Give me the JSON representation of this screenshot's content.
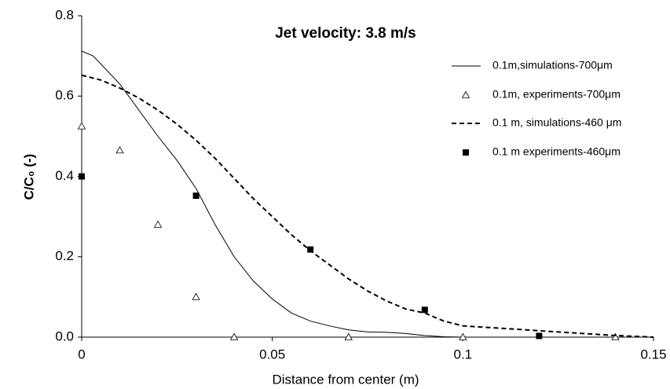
{
  "chart_data": {
    "type": "line",
    "annotation": "Jet velocity: 3.8 m/s",
    "x_label": "Distance from center (m)",
    "y_label": "C/C₀ (-)",
    "xlim": [
      0,
      0.15
    ],
    "xticks": [
      0,
      0.05,
      0.1,
      0.15
    ],
    "ylim": [
      0,
      0.8
    ],
    "yticks": [
      {
        "value": 0,
        "label": "0.0"
      },
      0.2,
      0.4,
      0.6,
      0.8
    ],
    "grid": false,
    "legend": "upper right",
    "series": [
      {
        "name": "0.1m,simulations-700μm",
        "color": "#000000",
        "marker": null,
        "dash": "solid",
        "x": [
          0,
          0.003,
          0.01,
          0.02,
          0.025,
          0.03,
          0.035,
          0.04,
          0.045,
          0.05,
          0.055,
          0.06,
          0.065,
          0.07,
          0.075,
          0.08,
          0.085,
          0.09,
          0.095,
          0.1
        ],
        "values": [
          0.712,
          0.7,
          0.63,
          0.5,
          0.44,
          0.37,
          0.28,
          0.2,
          0.14,
          0.095,
          0.06,
          0.04,
          0.028,
          0.018,
          0.013,
          0.012,
          0.009,
          0.004,
          0.001,
          0
        ]
      },
      {
        "name": "0.1m, experiments-700μm",
        "color": "#000000",
        "marker": "triangle",
        "dash": null,
        "x": [
          0,
          0.01,
          0.02,
          0.03,
          0.04,
          0.07,
          0.1,
          0.14
        ],
        "values": [
          0.525,
          0.465,
          0.28,
          0.1,
          0,
          0,
          0,
          0
        ]
      },
      {
        "name": "0.1 m, simulations-460 μm",
        "color": "#000000",
        "marker": null,
        "dash": "dashed",
        "x": [
          0,
          0.005,
          0.01,
          0.015,
          0.02,
          0.025,
          0.03,
          0.035,
          0.04,
          0.045,
          0.05,
          0.055,
          0.06,
          0.065,
          0.07,
          0.075,
          0.08,
          0.085,
          0.09,
          0.095,
          0.1,
          0.11,
          0.12,
          0.13,
          0.14,
          0.15
        ],
        "values": [
          0.652,
          0.64,
          0.62,
          0.595,
          0.565,
          0.53,
          0.49,
          0.445,
          0.395,
          0.345,
          0.3,
          0.255,
          0.215,
          0.18,
          0.145,
          0.115,
          0.09,
          0.07,
          0.06,
          0.04,
          0.028,
          0.022,
          0.016,
          0.01,
          0.004,
          0
        ]
      },
      {
        "name": "0.1 m experiments-460μm",
        "color": "#000000",
        "marker": "square",
        "dash": null,
        "x": [
          0,
          0.03,
          0.06,
          0.09,
          0.12
        ],
        "values": [
          0.4,
          0.352,
          0.218,
          0.068,
          0.003
        ]
      }
    ]
  }
}
